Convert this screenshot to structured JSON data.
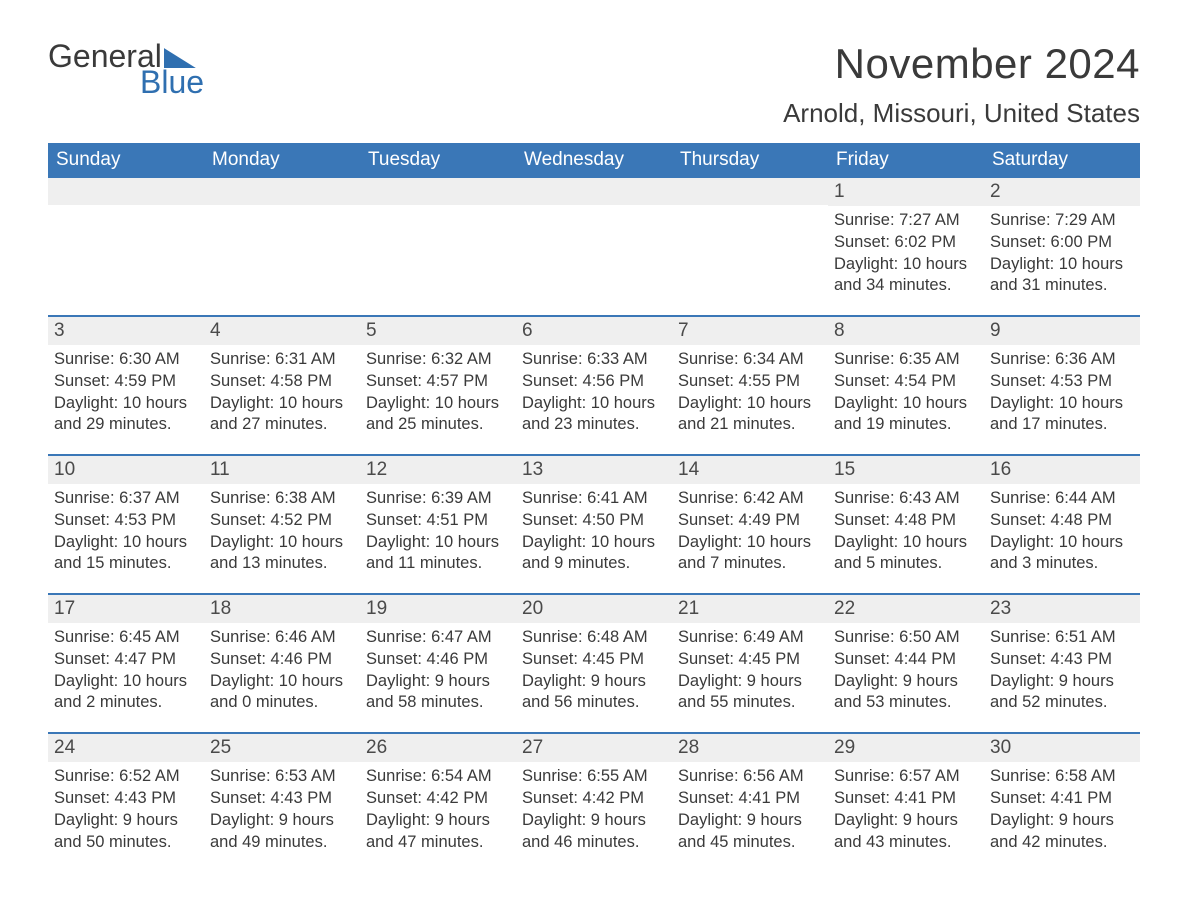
{
  "logo": {
    "general": "General",
    "blue": "Blue"
  },
  "title": "November 2024",
  "location": "Arnold, Missouri, United States",
  "header_bg": "#3a77b7",
  "daynum_bg": "#efefef",
  "weekdays": [
    "Sunday",
    "Monday",
    "Tuesday",
    "Wednesday",
    "Thursday",
    "Friday",
    "Saturday"
  ],
  "weeks": [
    [
      null,
      null,
      null,
      null,
      null,
      {
        "n": "1",
        "sr": "Sunrise: 7:27 AM",
        "ss": "Sunset: 6:02 PM",
        "dl": "Daylight: 10 hours and 34 minutes."
      },
      {
        "n": "2",
        "sr": "Sunrise: 7:29 AM",
        "ss": "Sunset: 6:00 PM",
        "dl": "Daylight: 10 hours and 31 minutes."
      }
    ],
    [
      {
        "n": "3",
        "sr": "Sunrise: 6:30 AM",
        "ss": "Sunset: 4:59 PM",
        "dl": "Daylight: 10 hours and 29 minutes."
      },
      {
        "n": "4",
        "sr": "Sunrise: 6:31 AM",
        "ss": "Sunset: 4:58 PM",
        "dl": "Daylight: 10 hours and 27 minutes."
      },
      {
        "n": "5",
        "sr": "Sunrise: 6:32 AM",
        "ss": "Sunset: 4:57 PM",
        "dl": "Daylight: 10 hours and 25 minutes."
      },
      {
        "n": "6",
        "sr": "Sunrise: 6:33 AM",
        "ss": "Sunset: 4:56 PM",
        "dl": "Daylight: 10 hours and 23 minutes."
      },
      {
        "n": "7",
        "sr": "Sunrise: 6:34 AM",
        "ss": "Sunset: 4:55 PM",
        "dl": "Daylight: 10 hours and 21 minutes."
      },
      {
        "n": "8",
        "sr": "Sunrise: 6:35 AM",
        "ss": "Sunset: 4:54 PM",
        "dl": "Daylight: 10 hours and 19 minutes."
      },
      {
        "n": "9",
        "sr": "Sunrise: 6:36 AM",
        "ss": "Sunset: 4:53 PM",
        "dl": "Daylight: 10 hours and 17 minutes."
      }
    ],
    [
      {
        "n": "10",
        "sr": "Sunrise: 6:37 AM",
        "ss": "Sunset: 4:53 PM",
        "dl": "Daylight: 10 hours and 15 minutes."
      },
      {
        "n": "11",
        "sr": "Sunrise: 6:38 AM",
        "ss": "Sunset: 4:52 PM",
        "dl": "Daylight: 10 hours and 13 minutes."
      },
      {
        "n": "12",
        "sr": "Sunrise: 6:39 AM",
        "ss": "Sunset: 4:51 PM",
        "dl": "Daylight: 10 hours and 11 minutes."
      },
      {
        "n": "13",
        "sr": "Sunrise: 6:41 AM",
        "ss": "Sunset: 4:50 PM",
        "dl": "Daylight: 10 hours and 9 minutes."
      },
      {
        "n": "14",
        "sr": "Sunrise: 6:42 AM",
        "ss": "Sunset: 4:49 PM",
        "dl": "Daylight: 10 hours and 7 minutes."
      },
      {
        "n": "15",
        "sr": "Sunrise: 6:43 AM",
        "ss": "Sunset: 4:48 PM",
        "dl": "Daylight: 10 hours and 5 minutes."
      },
      {
        "n": "16",
        "sr": "Sunrise: 6:44 AM",
        "ss": "Sunset: 4:48 PM",
        "dl": "Daylight: 10 hours and 3 minutes."
      }
    ],
    [
      {
        "n": "17",
        "sr": "Sunrise: 6:45 AM",
        "ss": "Sunset: 4:47 PM",
        "dl": "Daylight: 10 hours and 2 minutes."
      },
      {
        "n": "18",
        "sr": "Sunrise: 6:46 AM",
        "ss": "Sunset: 4:46 PM",
        "dl": "Daylight: 10 hours and 0 minutes."
      },
      {
        "n": "19",
        "sr": "Sunrise: 6:47 AM",
        "ss": "Sunset: 4:46 PM",
        "dl": "Daylight: 9 hours and 58 minutes."
      },
      {
        "n": "20",
        "sr": "Sunrise: 6:48 AM",
        "ss": "Sunset: 4:45 PM",
        "dl": "Daylight: 9 hours and 56 minutes."
      },
      {
        "n": "21",
        "sr": "Sunrise: 6:49 AM",
        "ss": "Sunset: 4:45 PM",
        "dl": "Daylight: 9 hours and 55 minutes."
      },
      {
        "n": "22",
        "sr": "Sunrise: 6:50 AM",
        "ss": "Sunset: 4:44 PM",
        "dl": "Daylight: 9 hours and 53 minutes."
      },
      {
        "n": "23",
        "sr": "Sunrise: 6:51 AM",
        "ss": "Sunset: 4:43 PM",
        "dl": "Daylight: 9 hours and 52 minutes."
      }
    ],
    [
      {
        "n": "24",
        "sr": "Sunrise: 6:52 AM",
        "ss": "Sunset: 4:43 PM",
        "dl": "Daylight: 9 hours and 50 minutes."
      },
      {
        "n": "25",
        "sr": "Sunrise: 6:53 AM",
        "ss": "Sunset: 4:43 PM",
        "dl": "Daylight: 9 hours and 49 minutes."
      },
      {
        "n": "26",
        "sr": "Sunrise: 6:54 AM",
        "ss": "Sunset: 4:42 PM",
        "dl": "Daylight: 9 hours and 47 minutes."
      },
      {
        "n": "27",
        "sr": "Sunrise: 6:55 AM",
        "ss": "Sunset: 4:42 PM",
        "dl": "Daylight: 9 hours and 46 minutes."
      },
      {
        "n": "28",
        "sr": "Sunrise: 6:56 AM",
        "ss": "Sunset: 4:41 PM",
        "dl": "Daylight: 9 hours and 45 minutes."
      },
      {
        "n": "29",
        "sr": "Sunrise: 6:57 AM",
        "ss": "Sunset: 4:41 PM",
        "dl": "Daylight: 9 hours and 43 minutes."
      },
      {
        "n": "30",
        "sr": "Sunrise: 6:58 AM",
        "ss": "Sunset: 4:41 PM",
        "dl": "Daylight: 9 hours and 42 minutes."
      }
    ]
  ]
}
